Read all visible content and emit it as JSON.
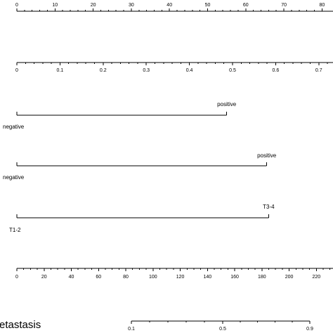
{
  "colors": {
    "axis": "#000000",
    "text": "#000000",
    "background": "#ffffff"
  },
  "chart_data": {
    "type": "nomogram",
    "rows": [
      {
        "id": "points",
        "kind": "numeric",
        "ticks": [
          {
            "value": 0,
            "label": "0"
          },
          {
            "value": 10,
            "label": "10"
          },
          {
            "value": 20,
            "label": "20"
          },
          {
            "value": 30,
            "label": "30"
          },
          {
            "value": 40,
            "label": "40"
          },
          {
            "value": 50,
            "label": "50"
          },
          {
            "value": 60,
            "label": "60"
          },
          {
            "value": 70,
            "label": "70"
          },
          {
            "value": 80,
            "label": "80"
          }
        ],
        "minor_per_major": 5
      },
      {
        "id": "continuous-predictor",
        "kind": "numeric",
        "ticks": [
          {
            "value": 0,
            "label": "0"
          },
          {
            "value": 0.1,
            "label": "0.1"
          },
          {
            "value": 0.2,
            "label": "0.2"
          },
          {
            "value": 0.3,
            "label": "0.3"
          },
          {
            "value": 0.4,
            "label": "0.4"
          },
          {
            "value": 0.5,
            "label": "0.5"
          },
          {
            "value": 0.6,
            "label": "0.6"
          },
          {
            "value": 0.7,
            "label": "0.7"
          }
        ],
        "minor_per_major": 5
      },
      {
        "id": "binary-predictor-1",
        "kind": "categorical",
        "levels": [
          {
            "label": "negative",
            "points": 0
          },
          {
            "label": "positive",
            "points": 55
          }
        ]
      },
      {
        "id": "binary-predictor-2",
        "kind": "categorical",
        "levels": [
          {
            "label": "negative",
            "points": 0
          },
          {
            "label": "positive",
            "points": 65.5
          }
        ]
      },
      {
        "id": "t-stage",
        "kind": "categorical",
        "levels": [
          {
            "label": "T1-2",
            "points": 0
          },
          {
            "label": "T3-4",
            "points": 66
          }
        ]
      },
      {
        "id": "total-points",
        "kind": "numeric",
        "ticks": [
          {
            "value": 0,
            "label": "0"
          },
          {
            "value": 20,
            "label": "20"
          },
          {
            "value": 40,
            "label": "40"
          },
          {
            "value": 60,
            "label": "60"
          },
          {
            "value": 80,
            "label": "80"
          },
          {
            "value": 100,
            "label": "100"
          },
          {
            "value": 120,
            "label": "120"
          },
          {
            "value": 140,
            "label": "140"
          },
          {
            "value": 160,
            "label": "160"
          },
          {
            "value": 180,
            "label": "180"
          },
          {
            "value": 200,
            "label": "200"
          },
          {
            "value": 220,
            "label": "220"
          }
        ],
        "minor_per_major": 4
      },
      {
        "id": "metastasis-probability",
        "kind": "numeric",
        "title": "etastasis",
        "ticks": [
          {
            "value": 0.1,
            "label": "0.1"
          },
          {
            "value": 0.5,
            "label": "0.5"
          },
          {
            "value": 0.9,
            "label": "0.9"
          }
        ],
        "minor_between_labels": [
          5,
          5
        ]
      }
    ]
  }
}
